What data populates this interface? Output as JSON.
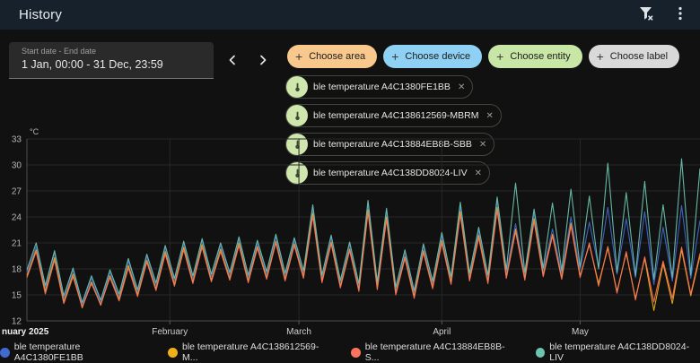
{
  "header": {
    "title": "History"
  },
  "datebar": {
    "label": "Start date - End date",
    "value": "1 Jan, 00:00 - 31 Dec, 23:59"
  },
  "filter_chips": [
    {
      "label": "Choose area",
      "bg": "#f9c88c"
    },
    {
      "label": "Choose device",
      "bg": "#8ed1f4"
    },
    {
      "label": "Choose entity",
      "bg": "#c8e6a6"
    },
    {
      "label": "Choose label",
      "bg": "#d9d9d9"
    }
  ],
  "entity_chips": [
    {
      "label": "ble temperature A4C1380FE1BB",
      "remove": "✕"
    },
    {
      "label": "ble temperature A4C138612569-MBRM",
      "remove": "✕"
    },
    {
      "label": "ble temperature A4C13884EB8B-SBB",
      "remove": "✕"
    },
    {
      "label": "ble temperature A4C138DD8024-LIV",
      "remove": "✕"
    }
  ],
  "chart_data": {
    "type": "line",
    "unit": "°C",
    "ylim": [
      12,
      33
    ],
    "yticks": [
      33,
      30,
      27,
      24,
      21,
      18,
      15,
      12
    ],
    "grid": true,
    "legend_position": "bottom",
    "months": [
      {
        "label": "nuary 2025",
        "day": 0,
        "bold": true,
        "anchor": "start",
        "offset": -28
      },
      {
        "label": "February",
        "day": 31
      },
      {
        "label": "March",
        "day": 59
      },
      {
        "label": "April",
        "day": 90
      },
      {
        "label": "May",
        "day": 120
      }
    ],
    "days": [
      0,
      2,
      4,
      6,
      8,
      10,
      12,
      14,
      16,
      18,
      20,
      22,
      24,
      26,
      28,
      30,
      32,
      34,
      36,
      38,
      40,
      42,
      44,
      46,
      48,
      50,
      52,
      54,
      56,
      58,
      60,
      62,
      64,
      66,
      68,
      70,
      72,
      74,
      76,
      78,
      80,
      82,
      84,
      86,
      88,
      90,
      92,
      94,
      96,
      98,
      100,
      102,
      104,
      106,
      108,
      110,
      112,
      114,
      116,
      118,
      120,
      122,
      124,
      126,
      128,
      130,
      132,
      134,
      136,
      138,
      140,
      142,
      144,
      146
    ],
    "series": [
      {
        "name": "ble temperature A4C1380FE1BB",
        "legend": "ble temperature A4C1380FE1BB",
        "color": "#4269d0",
        "values": [
          17.6,
          20.6,
          15.8,
          19.8,
          14.6,
          17.8,
          13.8,
          16.9,
          14.1,
          17.6,
          14.8,
          18.9,
          15.3,
          19.4,
          16.1,
          20.4,
          16.6,
          20.9,
          16.9,
          21.2,
          17.1,
          20.7,
          17.3,
          21.4,
          17.0,
          21.0,
          17.4,
          21.7,
          17.2,
          21.3,
          17.5,
          24.9,
          17.0,
          21.6,
          16.4,
          20.8,
          16.0,
          25.4,
          16.2,
          24.6,
          15.6,
          19.8,
          15.2,
          20.6,
          16.3,
          21.8,
          16.8,
          25.2,
          17.2,
          22.4,
          17.0,
          25.8,
          17.6,
          23.2,
          17.3,
          24.4,
          17.8,
          22.6,
          17.5,
          24.0,
          17.9,
          23.4,
          18.2,
          25.1,
          17.4,
          23.8,
          17.0,
          24.6,
          16.2,
          22.8,
          16.6,
          25.3,
          16.9,
          23.6
        ]
      },
      {
        "name": "ble temperature A4C138612569-MBRM",
        "legend": "ble temperature A4C138612569-M...",
        "color": "#efb118",
        "values": [
          17.2,
          20.2,
          15.4,
          19.3,
          14.2,
          17.4,
          13.5,
          16.5,
          13.8,
          17.2,
          14.5,
          18.4,
          15.0,
          19.0,
          15.7,
          20.0,
          16.2,
          20.5,
          16.5,
          20.8,
          16.7,
          20.3,
          16.9,
          21.0,
          16.6,
          20.6,
          17.0,
          21.2,
          16.8,
          20.9,
          17.1,
          24.4,
          16.6,
          21.1,
          16.0,
          20.3,
          15.6,
          24.8,
          15.8,
          24.0,
          15.2,
          19.4,
          14.8,
          20.1,
          15.9,
          21.3,
          16.4,
          24.6,
          16.8,
          21.9,
          16.5,
          25.1,
          17.1,
          22.6,
          16.9,
          23.8,
          17.3,
          22.0,
          17.0,
          23.3,
          17.2,
          20.8,
          16.3,
          20.4,
          15.4,
          19.8,
          14.6,
          19.2,
          13.2,
          18.6,
          14.0,
          20.2,
          14.9,
          19.5
        ]
      },
      {
        "name": "ble temperature A4C13884EB8B-SBB",
        "legend": "ble temperature A4C13884EB8B-S...",
        "color": "#ff725c",
        "values": [
          17.0,
          20.0,
          15.1,
          19.0,
          14.0,
          17.1,
          13.6,
          16.3,
          13.9,
          17.0,
          14.3,
          18.1,
          14.8,
          18.8,
          15.5,
          19.7,
          16.0,
          20.2,
          16.3,
          20.5,
          16.5,
          20.0,
          16.7,
          20.7,
          16.4,
          20.4,
          16.8,
          21.0,
          16.6,
          20.7,
          16.9,
          24.1,
          16.4,
          20.9,
          15.8,
          20.1,
          15.4,
          24.5,
          15.6,
          23.7,
          15.0,
          19.2,
          14.6,
          19.9,
          15.7,
          21.0,
          16.2,
          24.3,
          16.6,
          21.6,
          16.3,
          24.8,
          16.9,
          22.3,
          16.7,
          23.5,
          17.1,
          21.8,
          16.8,
          23.0,
          17.0,
          21.0,
          16.0,
          20.6,
          15.2,
          20.0,
          14.4,
          19.4,
          14.2,
          18.9,
          14.6,
          20.5,
          15.1,
          19.8
        ]
      },
      {
        "name": "ble temperature A4C138DD8024-LIV",
        "legend": "ble temperature A4C138DD8024-LIV",
        "color": "#6cc5b0",
        "values": [
          17.9,
          21.0,
          16.1,
          20.1,
          14.9,
          18.1,
          14.1,
          17.2,
          14.4,
          17.9,
          15.1,
          19.2,
          15.6,
          19.7,
          16.4,
          20.7,
          16.9,
          21.2,
          17.2,
          21.5,
          17.4,
          21.0,
          17.6,
          21.7,
          17.3,
          21.3,
          17.7,
          22.0,
          17.5,
          21.6,
          17.8,
          25.4,
          17.3,
          21.9,
          16.7,
          21.1,
          16.3,
          25.9,
          16.5,
          25.0,
          15.9,
          20.2,
          15.5,
          20.9,
          16.6,
          22.2,
          17.1,
          25.7,
          17.5,
          22.8,
          17.3,
          26.3,
          17.9,
          27.9,
          17.6,
          24.9,
          18.1,
          25.6,
          17.8,
          27.2,
          18.2,
          26.4,
          18.0,
          30.2,
          17.6,
          26.8,
          17.2,
          28.1,
          16.8,
          25.4,
          17.0,
          30.7,
          17.3,
          29.6
        ]
      }
    ]
  }
}
